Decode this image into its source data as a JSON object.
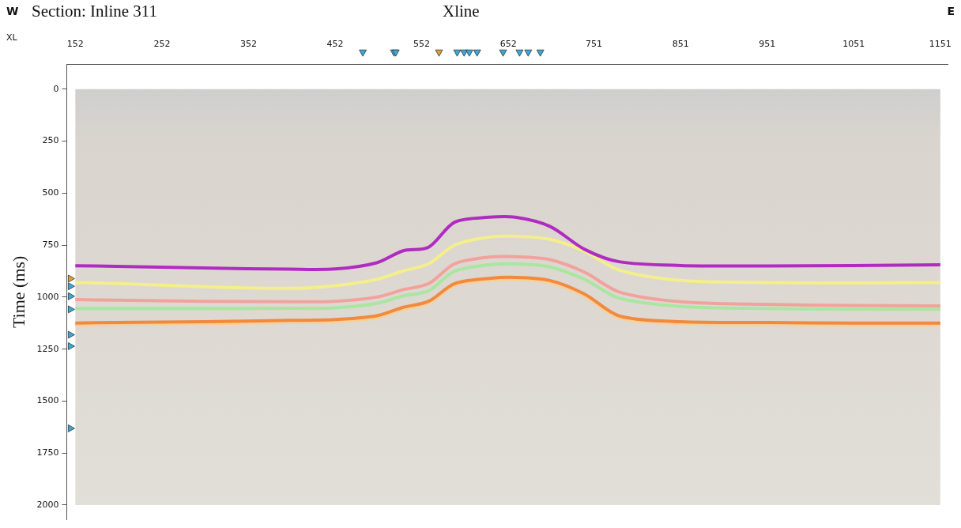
{
  "chart_data": {
    "type": "line",
    "title": "Section: Inline 311",
    "xlabel": "Xline",
    "ylabel": "Time (ms)",
    "direction_labels": {
      "left": "W",
      "right": "E"
    },
    "x_tick_prefix": "XL",
    "x": [
      152,
      200,
      300,
      400,
      452,
      500,
      530,
      560,
      590,
      630,
      660,
      700,
      740,
      780,
      851,
      950,
      1050,
      1151
    ],
    "series": [
      {
        "color": "#b02cc0",
        "values": [
          849,
          852,
          860,
          866,
          865,
          835,
          778,
          760,
          640,
          616,
          616,
          660,
          770,
          830,
          848,
          850,
          848,
          845
        ]
      },
      {
        "color": "#f4ee8c",
        "values": [
          930,
          935,
          950,
          958,
          945,
          915,
          875,
          840,
          750,
          712,
          708,
          722,
          780,
          870,
          920,
          930,
          932,
          930
        ]
      },
      {
        "color": "#f2a29c",
        "values": [
          1012,
          1015,
          1020,
          1022,
          1020,
          1000,
          965,
          935,
          840,
          808,
          806,
          820,
          880,
          975,
          1022,
          1035,
          1040,
          1042
        ]
      },
      {
        "color": "#a9e6a0",
        "values": [
          1055,
          1055,
          1055,
          1054,
          1052,
          1030,
          995,
          970,
          875,
          845,
          840,
          855,
          915,
          1005,
          1045,
          1055,
          1058,
          1058
        ]
      },
      {
        "color": "#f08a3e",
        "values": [
          1125,
          1122,
          1118,
          1112,
          1108,
          1090,
          1050,
          1020,
          935,
          910,
          905,
          920,
          985,
          1090,
          1118,
          1122,
          1125,
          1125
        ]
      },
      {
        "color": "#f9cf98",
        "values": [
          1135,
          1132,
          1128,
          1122,
          1118,
          1100,
          1060,
          1030,
          945,
          920,
          915,
          930,
          995,
          1100,
          1128,
          1132,
          1135,
          1135
        ]
      }
    ],
    "data_extent": {
      "x": [
        152,
        1151
      ],
      "y": [
        0,
        2000
      ]
    },
    "top_markers": {
      "x": [
        484,
        520,
        522,
        572,
        593,
        601,
        607,
        616,
        646,
        665,
        675,
        689
      ],
      "colors": [
        "#3aa8dc",
        "#3aa8dc",
        "#3aa8dc",
        "#e0a030",
        "#3aa8dc",
        "#3aa8dc",
        "#3aa8dc",
        "#3aa8dc",
        "#3aa8dc",
        "#3aa8dc",
        "#3aa8dc",
        "#3aa8dc"
      ]
    },
    "left_markers": {
      "y": [
        911,
        948,
        996,
        1059,
        1181,
        1236,
        1631
      ],
      "colors": [
        "#e0a030",
        "#3aa8dc",
        "#3aa8dc",
        "#3aa8dc",
        "#3aa8dc",
        "#3aa8dc",
        "#3aa8dc"
      ]
    },
    "xlim": [
      142,
      1160
    ],
    "ylim": [
      -120,
      2070
    ],
    "xticks": [
      152,
      252,
      352,
      452,
      552,
      652,
      751,
      851,
      951,
      1051,
      1151
    ],
    "yticks": [
      0,
      250,
      500,
      750,
      1000,
      1250,
      1500,
      1750,
      2000
    ],
    "grid": false
  }
}
